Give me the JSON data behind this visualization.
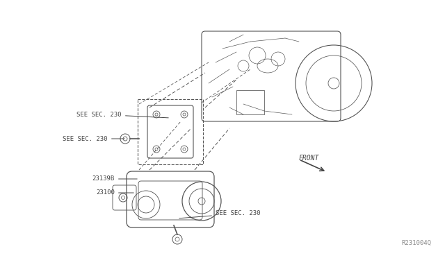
{
  "background_color": "#ffffff",
  "fig_width": 6.4,
  "fig_height": 3.72,
  "dpi": 100,
  "labels": {
    "see_sec_230_top": "SEE SEC. 230",
    "see_sec_230_mid": "SEE SEC. 230",
    "see_sec_230_bot": "SEE SEC. 230",
    "part_23139b": "23139B",
    "part_23100": "23100",
    "front": "FRONT",
    "ref_code": "R231004Q"
  },
  "text_color": "#444444",
  "line_color": "#333333",
  "diagram_color": "#555555"
}
